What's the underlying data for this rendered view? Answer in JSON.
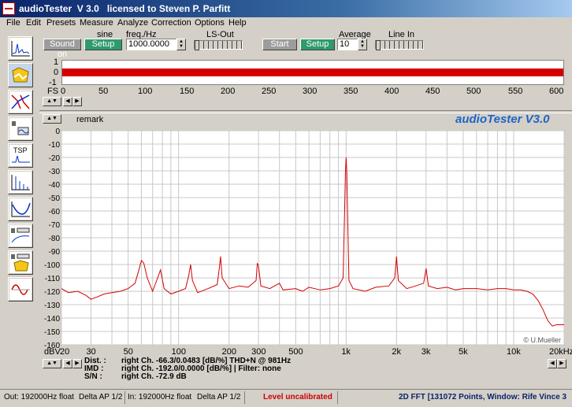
{
  "window": {
    "title": "audioTester  V 3.0   licensed to Steven P. Parfitt"
  },
  "menu": [
    "File",
    "Edit",
    "Presets",
    "Measure",
    "Analyze",
    "Correction",
    "Options",
    "Help"
  ],
  "toolbar": {
    "generator_type": "sine",
    "freq_label": "freq./Hz",
    "freq_value": "1000.0000",
    "ls_out_label": "LS-Out",
    "sound_on_label": "Sound on",
    "setup_label": "Setup",
    "start_label": "Start",
    "setup2_label": "Setup",
    "average_label": "Average",
    "average_value": "10",
    "line_in_label": "Line In"
  },
  "time_plot": {
    "y_ticks": [
      "1",
      "0",
      "-1"
    ],
    "x_ticks": [
      "0",
      "50",
      "100",
      "150",
      "200",
      "250",
      "300",
      "350",
      "400",
      "450",
      "500",
      "550",
      "600"
    ],
    "x_unit": "FS"
  },
  "spectrum": {
    "remark_label": "remark",
    "brand": "audioTester V3.0",
    "copyright": "© U.Mueller",
    "y_unit": "dBV",
    "y_ticks": [
      "0",
      "-10",
      "-20",
      "-30",
      "-40",
      "-50",
      "-60",
      "-70",
      "-80",
      "-90",
      "-100",
      "-110",
      "-120",
      "-130",
      "-140",
      "-150",
      "-160"
    ],
    "x_ticks": [
      "20",
      "30",
      "50",
      "100",
      "200",
      "300",
      "500",
      "1k",
      "2k",
      "3k",
      "5k",
      "10k",
      "20kHz"
    ]
  },
  "results": {
    "dist_label": "Dist. :",
    "dist_value": "right Ch. -66.3/0.0483 [dB/%] THD+N  @ 981Hz",
    "imd_label": "IMD :",
    "imd_value": "right Ch. -192.0/0.0000 [dB/%]  |   Filter: none",
    "sn_label": "S/N :",
    "sn_value": "right Ch. -72.9 dB"
  },
  "status": {
    "out": "Out: 192000Hz float",
    "out_dev": "Delta AP 1/2",
    "in": "In: 192000Hz float",
    "in_dev": "Delta AP 1/2",
    "level": "Level uncalibrated",
    "fft": "2D FFT [131072 Points, Window: Rife Vince 3"
  },
  "colors": {
    "trace": "#d40000",
    "grid": "#c8c8c8",
    "brand": "#1e64c8",
    "title_gradient_start": "#0a246a"
  },
  "chart_data": {
    "type": "line",
    "title": "",
    "xlabel": "",
    "ylabel": "dBV",
    "xscale": "log",
    "xlim": [
      20,
      20000
    ],
    "ylim": [
      -160,
      0
    ],
    "grid": true,
    "series": [
      {
        "points": [
          [
            20,
            -118
          ],
          [
            22,
            -121
          ],
          [
            25,
            -120
          ],
          [
            28,
            -123
          ],
          [
            30,
            -126
          ],
          [
            33,
            -124
          ],
          [
            36,
            -122
          ],
          [
            40,
            -121
          ],
          [
            45,
            -120
          ],
          [
            50,
            -118
          ],
          [
            55,
            -114
          ],
          [
            58,
            -104
          ],
          [
            60,
            -97
          ],
          [
            62,
            -99
          ],
          [
            65,
            -110
          ],
          [
            70,
            -120
          ],
          [
            75,
            -110
          ],
          [
            78,
            -104
          ],
          [
            82,
            -118
          ],
          [
            90,
            -122
          ],
          [
            100,
            -120
          ],
          [
            110,
            -118
          ],
          [
            115,
            -108
          ],
          [
            118,
            -100
          ],
          [
            121,
            -112
          ],
          [
            130,
            -121
          ],
          [
            150,
            -118
          ],
          [
            170,
            -115
          ],
          [
            175,
            -103
          ],
          [
            178,
            -94
          ],
          [
            182,
            -110
          ],
          [
            200,
            -118
          ],
          [
            230,
            -116
          ],
          [
            260,
            -117
          ],
          [
            290,
            -112
          ],
          [
            295,
            -99
          ],
          [
            300,
            -101
          ],
          [
            310,
            -116
          ],
          [
            350,
            -118
          ],
          [
            400,
            -114
          ],
          [
            420,
            -119
          ],
          [
            500,
            -118
          ],
          [
            550,
            -120
          ],
          [
            600,
            -117
          ],
          [
            700,
            -119
          ],
          [
            800,
            -118
          ],
          [
            900,
            -116
          ],
          [
            960,
            -110
          ],
          [
            980,
            -60
          ],
          [
            990,
            -32
          ],
          [
            1000,
            -20
          ],
          [
            1010,
            -32
          ],
          [
            1020,
            -60
          ],
          [
            1040,
            -112
          ],
          [
            1100,
            -118
          ],
          [
            1300,
            -120
          ],
          [
            1500,
            -117
          ],
          [
            1800,
            -116
          ],
          [
            1950,
            -110
          ],
          [
            2000,
            -94
          ],
          [
            2050,
            -112
          ],
          [
            2300,
            -118
          ],
          [
            2600,
            -116
          ],
          [
            2900,
            -114
          ],
          [
            3000,
            -103
          ],
          [
            3100,
            -116
          ],
          [
            3500,
            -118
          ],
          [
            4000,
            -117
          ],
          [
            4500,
            -119
          ],
          [
            5000,
            -118
          ],
          [
            6000,
            -118
          ],
          [
            7000,
            -119
          ],
          [
            8000,
            -118
          ],
          [
            9000,
            -118
          ],
          [
            10000,
            -119
          ],
          [
            11000,
            -119
          ],
          [
            12000,
            -120
          ],
          [
            13000,
            -122
          ],
          [
            14000,
            -127
          ],
          [
            15000,
            -134
          ],
          [
            16000,
            -142
          ],
          [
            17000,
            -146
          ],
          [
            18000,
            -145
          ],
          [
            19000,
            -145
          ],
          [
            20000,
            -145
          ]
        ]
      }
    ]
  }
}
